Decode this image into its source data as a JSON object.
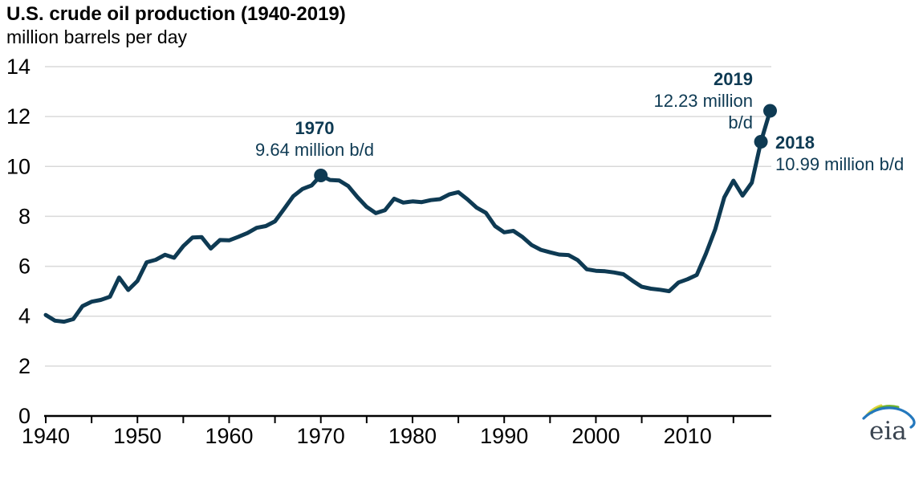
{
  "header": {
    "title": "U.S. crude oil production (1940-2019)",
    "subtitle": "million barrels per day"
  },
  "colors": {
    "line": "#0e3a53",
    "annotation_text": "#0e3a53",
    "grid": "#d9d9d9",
    "axis": "#000000",
    "tick_label": "#000000",
    "logo_text": "#3a4450",
    "logo_yellow": "#ded43a",
    "logo_green": "#6fb32b",
    "logo_blue": "#2478bd"
  },
  "chart_data": {
    "type": "line",
    "title": "U.S. crude oil production (1940-2019)",
    "xlabel": "",
    "ylabel": "million barrels per day",
    "xlim": [
      1940,
      2019
    ],
    "ylim": [
      0,
      14
    ],
    "grid": "horizontal",
    "legend": "none",
    "y_ticks": [
      0,
      2,
      4,
      6,
      8,
      10,
      12,
      14
    ],
    "x_minor_tick_step": 5,
    "x_minor_tick_end": 2015,
    "x_label_ticks": [
      1940,
      1950,
      1960,
      1970,
      1980,
      1990,
      2000,
      2010
    ],
    "series": [
      {
        "name": "U.S. crude oil production (million b/d)",
        "x": [
          1940,
          1941,
          1942,
          1943,
          1944,
          1945,
          1946,
          1947,
          1948,
          1949,
          1950,
          1951,
          1952,
          1953,
          1954,
          1955,
          1956,
          1957,
          1958,
          1959,
          1960,
          1961,
          1962,
          1963,
          1964,
          1965,
          1966,
          1967,
          1968,
          1969,
          1970,
          1971,
          1972,
          1973,
          1974,
          1975,
          1976,
          1977,
          1978,
          1979,
          1980,
          1981,
          1982,
          1983,
          1984,
          1985,
          1986,
          1987,
          1988,
          1989,
          1990,
          1991,
          1992,
          1993,
          1994,
          1995,
          1996,
          1997,
          1998,
          1999,
          2000,
          2001,
          2002,
          2003,
          2004,
          2005,
          2006,
          2007,
          2008,
          2009,
          2010,
          2011,
          2012,
          2013,
          2014,
          2015,
          2016,
          2017,
          2018,
          2019
        ],
        "values": [
          4.05,
          3.82,
          3.78,
          3.88,
          4.4,
          4.58,
          4.65,
          4.78,
          5.55,
          5.05,
          5.41,
          6.16,
          6.26,
          6.46,
          6.34,
          6.81,
          7.15,
          7.17,
          6.71,
          7.05,
          7.04,
          7.18,
          7.33,
          7.54,
          7.61,
          7.8,
          8.3,
          8.81,
          9.1,
          9.24,
          9.64,
          9.46,
          9.44,
          9.21,
          8.77,
          8.38,
          8.13,
          8.25,
          8.71,
          8.55,
          8.6,
          8.57,
          8.65,
          8.69,
          8.88,
          8.97,
          8.68,
          8.35,
          8.14,
          7.61,
          7.36,
          7.42,
          7.17,
          6.85,
          6.66,
          6.56,
          6.47,
          6.45,
          6.25,
          5.88,
          5.82,
          5.8,
          5.75,
          5.68,
          5.42,
          5.18,
          5.1,
          5.06,
          5.0,
          5.35,
          5.48,
          5.65,
          6.5,
          7.47,
          8.76,
          9.43,
          8.83,
          9.35,
          10.99,
          12.23
        ]
      }
    ],
    "annotated_points": [
      {
        "year": 1970,
        "value": 9.64
      },
      {
        "year": 2018,
        "value": 10.99
      },
      {
        "year": 2019,
        "value": 12.23
      }
    ]
  },
  "annotations": {
    "peak1970": {
      "year_label": "1970",
      "value_label": "9.64 million b/d"
    },
    "point2019": {
      "year_label": "2019",
      "value_line1": "12.23 million",
      "value_line2": "b/d"
    },
    "point2018": {
      "year_label": "2018",
      "value_label": "10.99 million b/d"
    }
  },
  "logo": {
    "text": "eia"
  }
}
